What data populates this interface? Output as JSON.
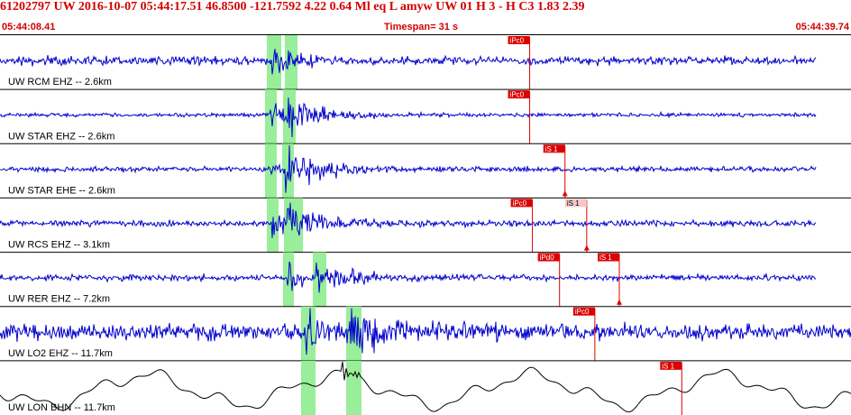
{
  "header": {
    "title": "61202797 UW 2016-10-07 05:44:17.51   46.8500 -121.7592   4.22  0.64 Ml  eq  L amyw     UW 01  H   3  -  H C3    1.83  2.39",
    "start_time": "05:44:08.41",
    "timespan": "Timespan=  31 s",
    "end_time": "05:44:39.74"
  },
  "colors": {
    "header_text": "#d40000",
    "waveform": "#0000cc",
    "long_period_waveform": "#000000",
    "pick_marker": "#dd0000",
    "pick_label_bg": "#dd0000",
    "pick_window": "#99ee99",
    "divider": "#000000"
  },
  "traces": [
    {
      "label": "UW RCM EHZ -- 2.6km",
      "picks": [
        {
          "label": "iPc0",
          "time": 19.5
        }
      ]
    },
    {
      "label": "UW STAR EHZ -- 2.6km",
      "picks": [
        {
          "label": "iPc0",
          "time": 19.5
        }
      ]
    },
    {
      "label": "UW STAR EHE -- 2.6km",
      "picks": [
        {
          "label": "iS 1",
          "time": 20.8
        }
      ]
    },
    {
      "label": "UW RCS EHZ -- 3.1km",
      "picks": [
        {
          "label": "iPc0",
          "time": 19.6
        },
        {
          "label": "iS 1",
          "time": 21.6
        }
      ]
    },
    {
      "label": "UW RER EHZ -- 7.2km",
      "picks": [
        {
          "label": "iPd0",
          "time": 20.6
        },
        {
          "label": "iS 1",
          "time": 22.8
        }
      ]
    },
    {
      "label": "UW LO2 EHZ -- 11.7km",
      "picks": [
        {
          "label": "iPc0",
          "time": 21.9
        }
      ]
    },
    {
      "label": "UW LON BHN -- 11.7km",
      "picks": [
        {
          "label": "iS 1",
          "time": 25.1
        }
      ]
    }
  ]
}
